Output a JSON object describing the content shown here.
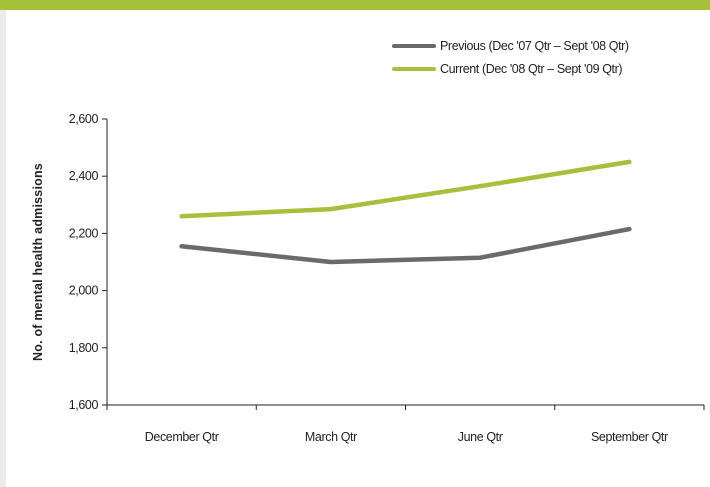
{
  "chart_data": {
    "type": "line",
    "title": "",
    "xlabel": "",
    "ylabel": "No. of mental health admissions",
    "categories": [
      "December Qtr",
      "March Qtr",
      "June Qtr",
      "September Qtr"
    ],
    "ylim": [
      1600,
      2600
    ],
    "yticks": [
      1600,
      1800,
      2000,
      2200,
      2400,
      2600
    ],
    "ytick_labels": [
      "1,600",
      "1,800",
      "2,000",
      "2,200",
      "2,400",
      "2,600"
    ],
    "grid": false,
    "legend_position": "top-right",
    "series": [
      {
        "name": "Previous (Dec '07 Qtr – Sept '08 Qtr)",
        "color": "#6a6a6a",
        "values": [
          2155,
          2100,
          2115,
          2215
        ]
      },
      {
        "name": "Current (Dec '08 Qtr – Sept '09 Qtr)",
        "color": "#a6c03c",
        "values": [
          2260,
          2285,
          2365,
          2450
        ]
      }
    ]
  },
  "colors": {
    "top_band": "#a6c03c",
    "background": "#ebebeb",
    "panel": "#ffffff"
  }
}
